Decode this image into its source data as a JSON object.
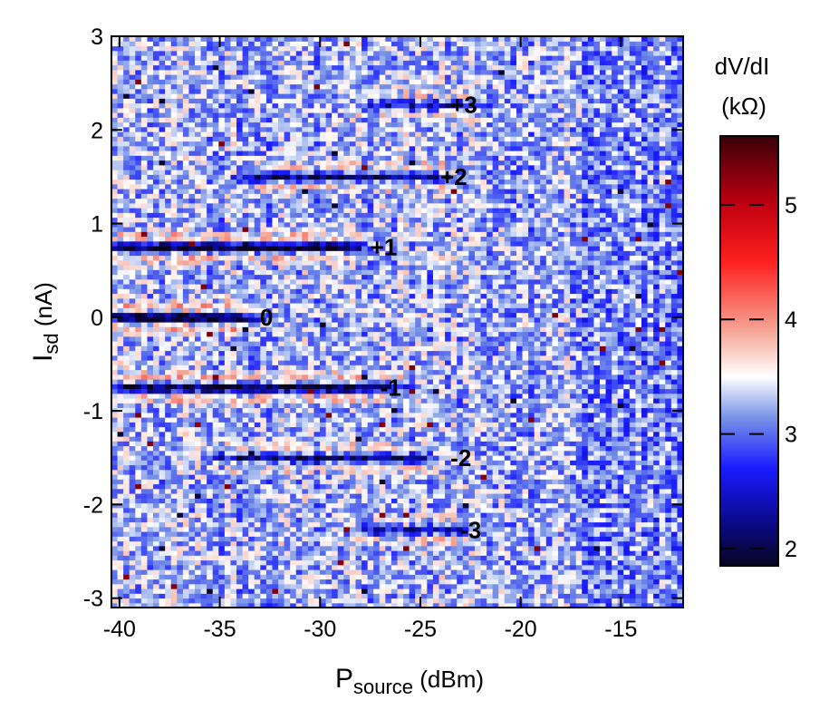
{
  "chart_data": {
    "type": "heatmap",
    "xlabel": {
      "main": "P",
      "sub": "source",
      "units": " (dBm)"
    },
    "ylabel": {
      "main": "I",
      "sub": "sd",
      "units": " (nA)"
    },
    "xlim": [
      -40.4,
      -11.9
    ],
    "ylim": [
      -3.1,
      3.0
    ],
    "xticks": [
      -40,
      -35,
      -30,
      -25,
      -20,
      -15
    ],
    "yticks": [
      3,
      2,
      1,
      0,
      -1,
      -2,
      -3
    ],
    "xtick_labels": [
      "-40",
      "-35",
      "-30",
      "-25",
      "-20",
      "-15"
    ],
    "ytick_labels": [
      "3",
      "2",
      "1",
      "0",
      "-1",
      "-2",
      "-3"
    ],
    "colorbar": {
      "title_line1": "dV/dI",
      "title_line2": "(kΩ)",
      "range": [
        1.85,
        5.6
      ],
      "ticks": [
        2,
        3,
        4,
        5
      ],
      "tick_labels": [
        "2",
        "3",
        "4",
        "5"
      ],
      "colorscale": [
        {
          "value": 1.85,
          "color": "#080420"
        },
        {
          "value": 2.25,
          "color": "#0a0a90"
        },
        {
          "value": 2.7,
          "color": "#1a1aff"
        },
        {
          "value": 3.15,
          "color": "#7a95e6"
        },
        {
          "value": 3.5,
          "color": "#ffffff"
        },
        {
          "value": 3.9,
          "color": "#f5a595"
        },
        {
          "value": 4.5,
          "color": "#ff2020"
        },
        {
          "value": 5.0,
          "color": "#c00010"
        },
        {
          "value": 5.6,
          "color": "#3a0008"
        }
      ]
    },
    "background_level": 3.25,
    "features": [
      {
        "label": "+3",
        "n": 3,
        "x_start": -28.0,
        "x_end": -22.0,
        "y": 2.27,
        "depth": 0.8,
        "label_x": -23.5,
        "label_y": 2.27
      },
      {
        "label": "+2",
        "n": 2,
        "x_start": -34.0,
        "x_end": -23.5,
        "y": 1.5,
        "depth": 1.0,
        "label_x": -24.0,
        "label_y": 1.5
      },
      {
        "label": "+1",
        "n": 1,
        "x_start": -40.4,
        "x_end": -28.0,
        "y": 0.75,
        "depth": 1.5,
        "label_x": -27.5,
        "label_y": 0.75
      },
      {
        "label": "0",
        "n": 0,
        "x_start": -40.4,
        "x_end": -33.5,
        "y": 0.0,
        "depth": 1.7,
        "label_x": -33.0,
        "label_y": 0.0
      },
      {
        "label": "-1",
        "n": -1,
        "x_start": -40.4,
        "x_end": -26.0,
        "y": -0.75,
        "depth": 1.4,
        "label_x": -27.0,
        "label_y": -0.75
      },
      {
        "label": "-2",
        "n": -2,
        "x_start": -35.0,
        "x_end": -24.5,
        "y": -1.5,
        "depth": 1.0,
        "label_x": -23.5,
        "label_y": -1.5
      },
      {
        "label": "-3",
        "n": -3,
        "x_start": -28.0,
        "x_end": -22.5,
        "y": -2.27,
        "depth": 0.8,
        "label_x": -23.0,
        "label_y": -2.27
      }
    ]
  }
}
